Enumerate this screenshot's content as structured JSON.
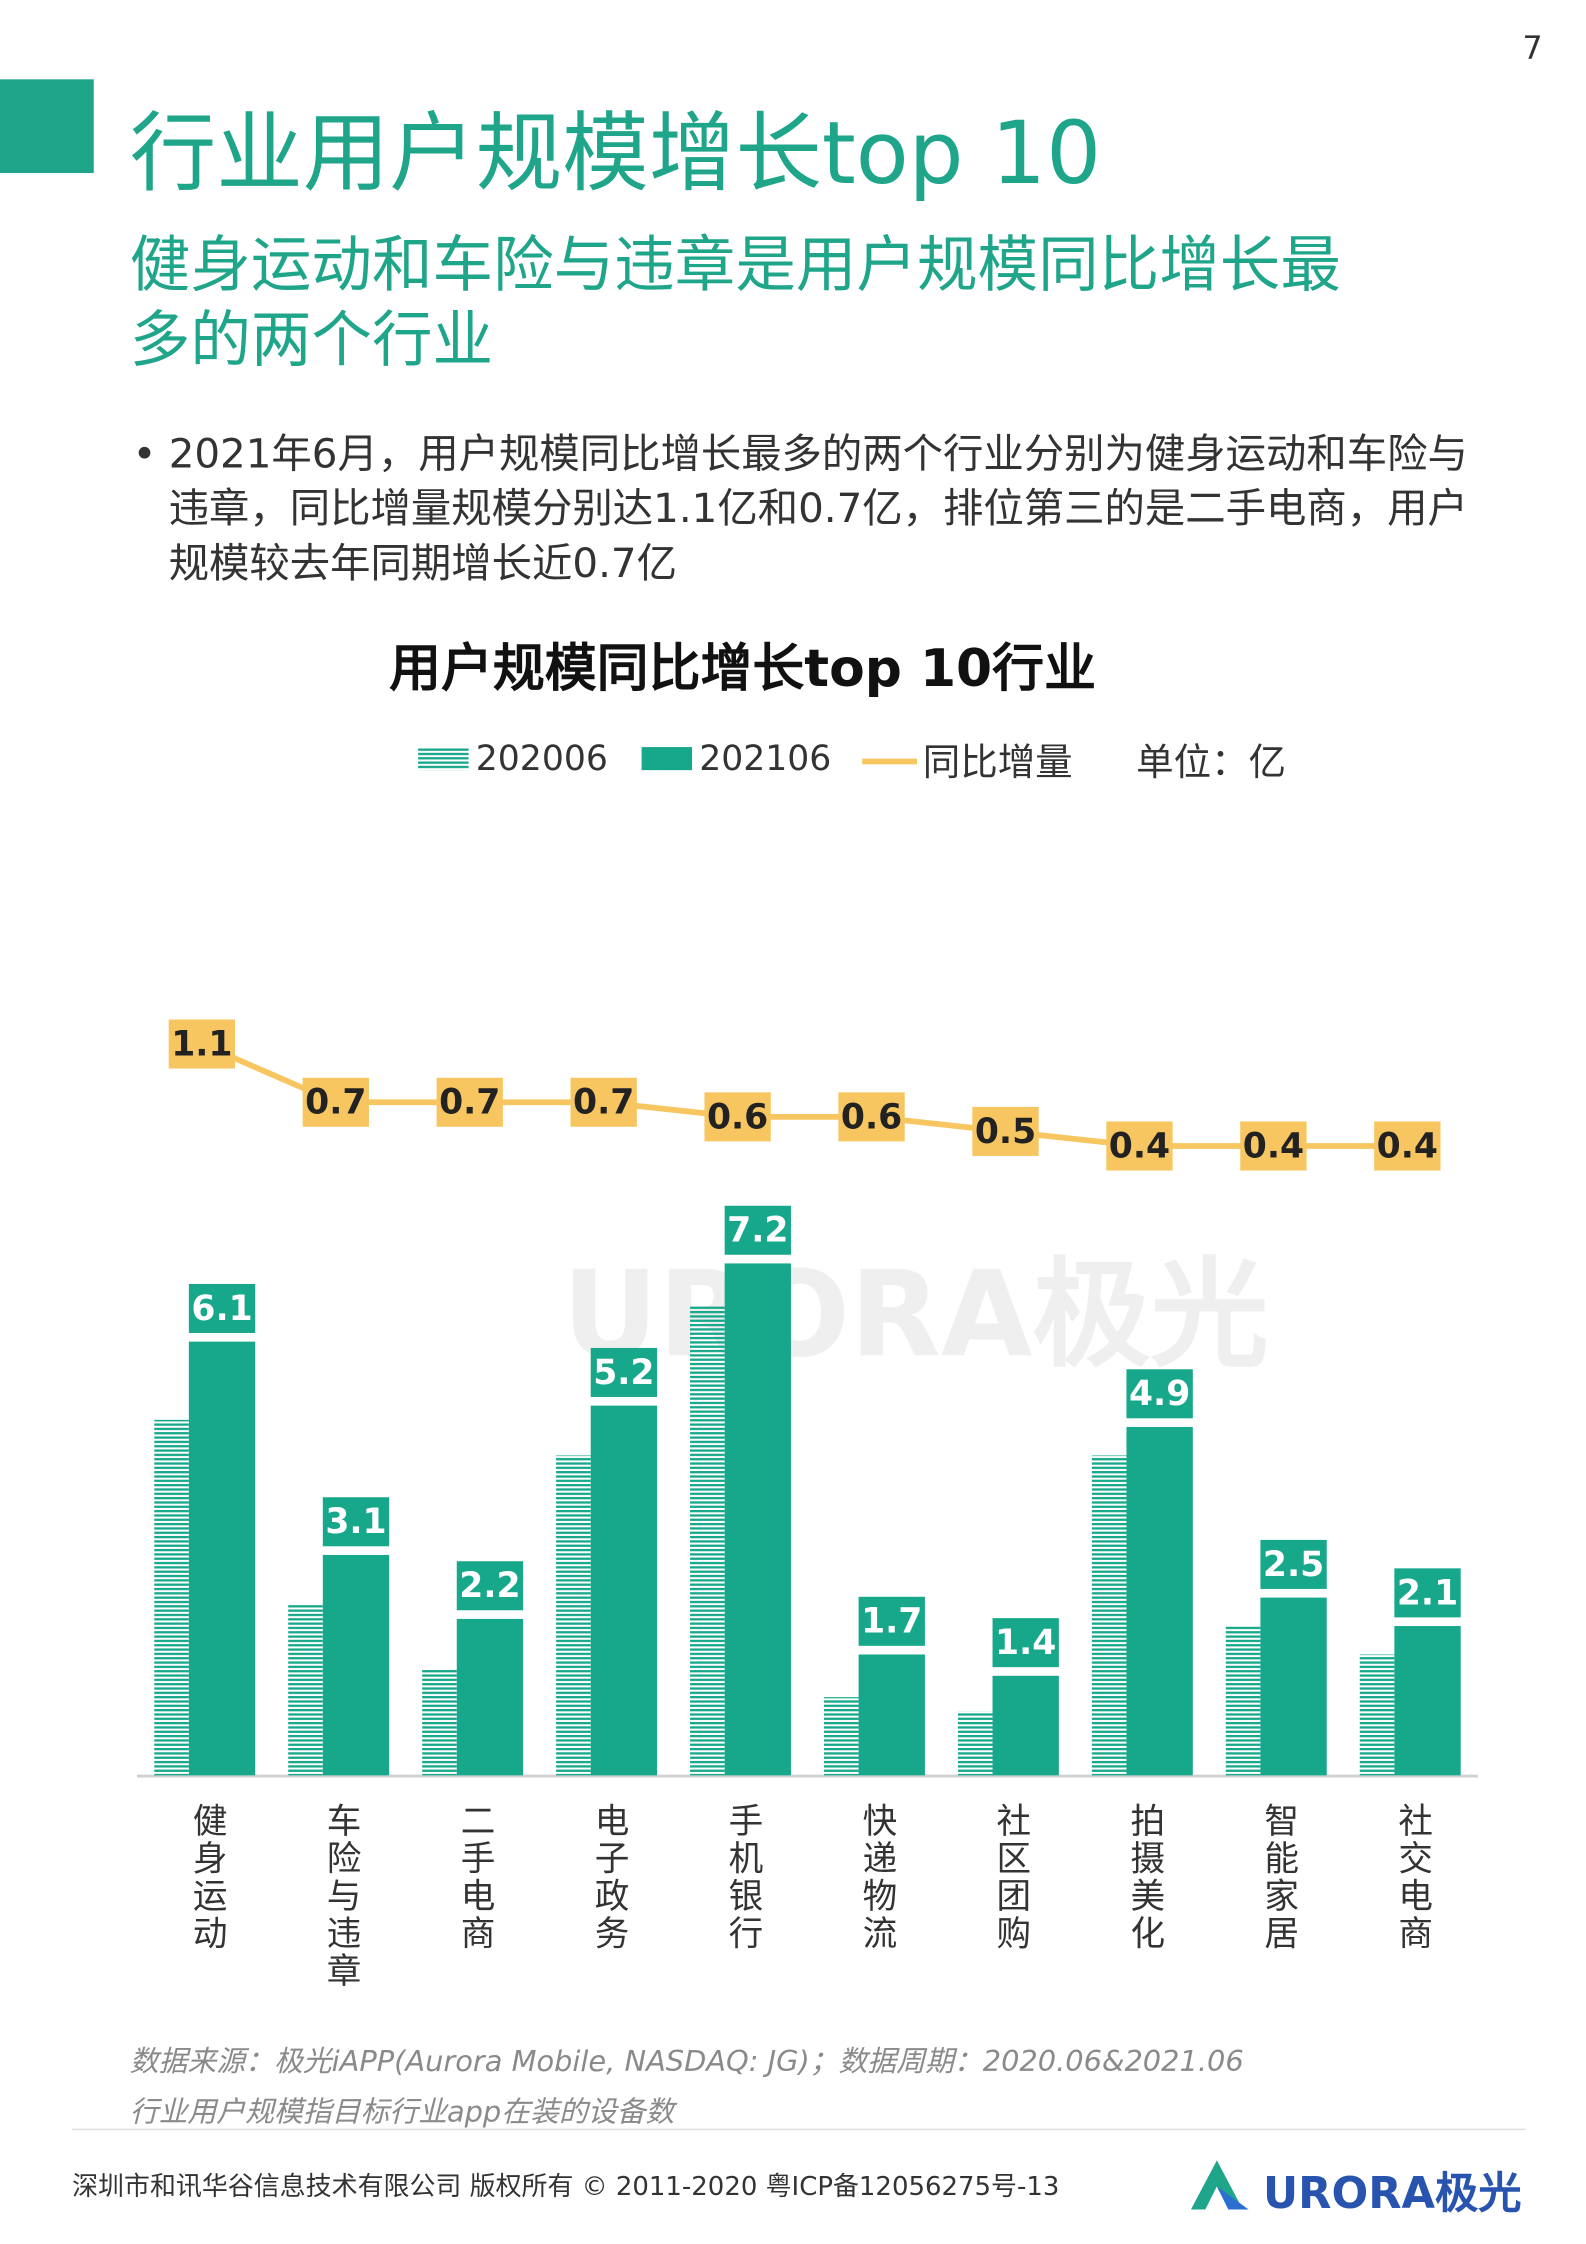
{
  "page_number": "7",
  "header": {
    "title": "行业用户规模增长top 10",
    "subtitle": "健身运动和车险与违章是用户规模同比增长最多的两个行业"
  },
  "bullet": "2021年6月，用户规模同比增长最多的两个行业分别为健身运动和车险与违章，同比增量规模分别达1.1亿和0.7亿，排位第三的是二手电商，用户规模较去年同期增长近0.7亿",
  "chart_data": {
    "type": "bar",
    "title": "用户规模同比增长top 10行业",
    "unit": "单位：亿",
    "categories": [
      "健身运动",
      "车险与违章",
      "二手电商",
      "电子政务",
      "手机银行",
      "快递物流",
      "社区团购",
      "拍摄美化",
      "智能家居",
      "社交电商"
    ],
    "series": [
      {
        "name": "202006",
        "color": "#17a88b",
        "values": [
          5.0,
          2.4,
          1.5,
          4.5,
          6.6,
          1.1,
          0.9,
          4.5,
          2.1,
          1.7
        ]
      },
      {
        "name": "202106",
        "color": "#17a88b",
        "values": [
          6.1,
          3.1,
          2.2,
          5.2,
          7.2,
          1.7,
          1.4,
          4.9,
          2.5,
          2.1
        ]
      },
      {
        "name": "同比增量",
        "type": "line",
        "color": "#f8c660",
        "values": [
          1.1,
          0.7,
          0.7,
          0.7,
          0.6,
          0.6,
          0.5,
          0.4,
          0.4,
          0.4
        ]
      }
    ]
  },
  "footer": {
    "source": "数据来源：极光iAPP(Aurora Mobile, NASDAQ: JG)；数据周期：2020.06&2021.06",
    "note": "行业用户规模指目标行业app在装的设备数",
    "copyright": "深圳市和讯华谷信息技术有限公司 版权所有 © 2011-2020 粤ICP备12056275号-13",
    "logo": "URORA极光"
  }
}
